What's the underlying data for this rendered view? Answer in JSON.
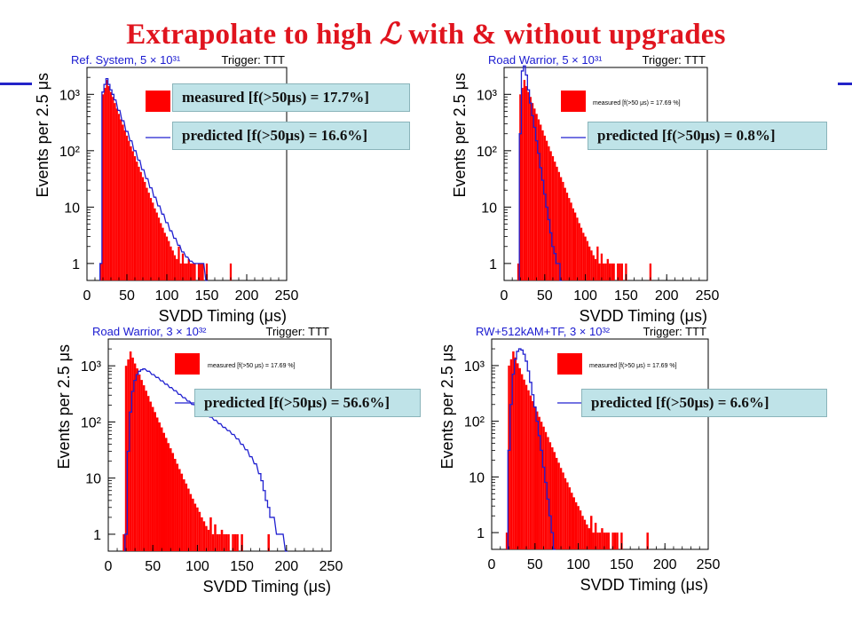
{
  "slide": {
    "title_prefix": "Extrapolate to high ",
    "title_symbol": "ℒ",
    "title_suffix": " with & without upgrades",
    "accent_color": "#2323c8",
    "title_color": "#e0141e"
  },
  "chart_data": [
    {
      "type": "bar",
      "title": "Ref. System, 5 × 10³¹",
      "trigger": "Trigger: TTT",
      "xlabel": "SVDD Timing (μs)",
      "ylabel": "Events per 2.5 μs",
      "xlim": [
        0,
        250
      ],
      "xticks": [
        "0",
        "50",
        "100",
        "150",
        "200",
        "250"
      ],
      "yscale": "log",
      "ylim": [
        0.5,
        3000
      ],
      "yticks": [
        "1",
        "10",
        "10²",
        "10³"
      ],
      "legend_small": "",
      "legend_measured": "measured [f(>50μs) = 17.7%]",
      "legend_predicted": "predicted [f(>50μs) = 16.6%]",
      "series": [
        {
          "name": "measured",
          "color": "#ff0000",
          "x": [
            17.5,
            20,
            22.5,
            25,
            27.5,
            30,
            32.5,
            35,
            37.5,
            40,
            42.5,
            45,
            47.5,
            50,
            52.5,
            55,
            57.5,
            60,
            62.5,
            65,
            67.5,
            70,
            72.5,
            75,
            77.5,
            80,
            82.5,
            85,
            87.5,
            90,
            92.5,
            95,
            97.5,
            100,
            102.5,
            105,
            107.5,
            110,
            112.5,
            115,
            117.5,
            120,
            122.5,
            125,
            127.5,
            130,
            132.5,
            135,
            137.5,
            140,
            142.5,
            145,
            147.5,
            150,
            180
          ],
          "values": [
            1,
            1000,
            1300,
            1800,
            1400,
            1100,
            900,
            700,
            560,
            450,
            360,
            290,
            230,
            185,
            150,
            120,
            98,
            80,
            64,
            52,
            42,
            34,
            28,
            22,
            18,
            14.5,
            12,
            9.5,
            8,
            6.5,
            5.2,
            4.3,
            3.5,
            3,
            2.5,
            2,
            1.7,
            1.4,
            1.2,
            2,
            1,
            1.5,
            1,
            1,
            1.2,
            1,
            1,
            1,
            0,
            1,
            1,
            1,
            0,
            1,
            1
          ]
        },
        {
          "name": "predicted",
          "color": "#2020d0",
          "x": [
            17.5,
            20,
            22.5,
            25,
            27.5,
            30,
            32.5,
            35,
            40,
            45,
            50,
            55,
            60,
            65,
            70,
            75,
            80,
            85,
            90,
            95,
            100,
            105,
            110,
            115,
            120,
            125,
            130,
            135,
            140,
            145,
            150
          ],
          "values": [
            1,
            1100,
            1500,
            1900,
            1500,
            1200,
            1000,
            800,
            520,
            340,
            220,
            150,
            100,
            68,
            46,
            32,
            22,
            15,
            10.5,
            7.5,
            5.3,
            3.8,
            2.8,
            2.1,
            1.6,
            1.3,
            1.1,
            1,
            1,
            1,
            0.5
          ]
        }
      ]
    },
    {
      "type": "bar",
      "title": "Road Warrior, 5 × 10³¹",
      "trigger": "Trigger: TTT",
      "xlabel": "SVDD Timing (μs)",
      "ylabel": "Events per 2.5 μs",
      "xlim": [
        0,
        250
      ],
      "xticks": [
        "0",
        "50",
        "100",
        "150",
        "200",
        "250"
      ],
      "yscale": "log",
      "ylim": [
        0.5,
        3000
      ],
      "yticks": [
        "1",
        "10",
        "10²",
        "10³"
      ],
      "legend_small": "measured [f(>50 μs) = 17.69 %]",
      "legend_measured": "",
      "legend_predicted": "predicted [f(>50μs) = 0.8%]",
      "series": [
        {
          "name": "measured",
          "color": "#ff0000",
          "x": [
            17.5,
            20,
            22.5,
            25,
            27.5,
            30,
            32.5,
            35,
            37.5,
            40,
            42.5,
            45,
            47.5,
            50,
            52.5,
            55,
            57.5,
            60,
            62.5,
            65,
            67.5,
            70,
            72.5,
            75,
            77.5,
            80,
            82.5,
            85,
            87.5,
            90,
            92.5,
            95,
            97.5,
            100,
            102.5,
            105,
            107.5,
            110,
            112.5,
            115,
            117.5,
            120,
            122.5,
            125,
            127.5,
            130,
            132.5,
            135,
            137.5,
            140,
            142.5,
            145,
            147.5,
            150,
            180
          ],
          "values": [
            1,
            1000,
            1300,
            1800,
            1400,
            1100,
            900,
            700,
            560,
            450,
            360,
            290,
            230,
            185,
            150,
            120,
            98,
            80,
            64,
            52,
            42,
            34,
            28,
            22,
            18,
            14.5,
            12,
            9.5,
            8,
            6.5,
            5.2,
            4.3,
            3.5,
            3,
            2.5,
            2,
            1.7,
            1.4,
            1.2,
            2,
            1,
            1.5,
            1,
            1,
            1.2,
            1,
            1,
            1,
            0,
            1,
            1,
            1,
            0,
            1,
            1
          ]
        },
        {
          "name": "predicted",
          "color": "#2020d0",
          "x": [
            20,
            22.5,
            25,
            27.5,
            30,
            32.5,
            35,
            37.5,
            40,
            42.5,
            45,
            47.5,
            50,
            52.5,
            55,
            57.5,
            60,
            62.5,
            65,
            67.5,
            70
          ],
          "values": [
            200,
            2600,
            3200,
            2200,
            1200,
            700,
            420,
            260,
            150,
            90,
            50,
            30,
            17,
            10,
            6,
            3.5,
            2,
            1.5,
            1,
            1,
            0.5
          ]
        }
      ]
    },
    {
      "type": "bar",
      "title": "Road Warrior, 3 × 10³²",
      "trigger": "Trigger: TTT",
      "xlabel": "SVDD Timing (μs)",
      "ylabel": "Events per 2.5 μs",
      "xlim": [
        0,
        250
      ],
      "xticks": [
        "0",
        "50",
        "100",
        "150",
        "200",
        "250"
      ],
      "yscale": "log",
      "ylim": [
        0.5,
        3000
      ],
      "yticks": [
        "1",
        "10",
        "10²",
        "10³"
      ],
      "legend_small": "measured [f(>50 μs) = 17.69 %]",
      "legend_measured": "",
      "legend_predicted": "predicted [f(>50μs) = 56.6%]",
      "series": [
        {
          "name": "measured",
          "color": "#ff0000",
          "x": [
            17.5,
            20,
            22.5,
            25,
            27.5,
            30,
            32.5,
            35,
            37.5,
            40,
            42.5,
            45,
            47.5,
            50,
            52.5,
            55,
            57.5,
            60,
            62.5,
            65,
            67.5,
            70,
            72.5,
            75,
            77.5,
            80,
            82.5,
            85,
            87.5,
            90,
            92.5,
            95,
            97.5,
            100,
            102.5,
            105,
            107.5,
            110,
            112.5,
            115,
            117.5,
            120,
            122.5,
            125,
            127.5,
            130,
            132.5,
            135,
            137.5,
            140,
            142.5,
            145,
            147.5,
            150,
            180
          ],
          "values": [
            1,
            1000,
            1300,
            1800,
            1400,
            1100,
            900,
            700,
            560,
            450,
            360,
            290,
            230,
            185,
            150,
            120,
            98,
            80,
            64,
            52,
            42,
            34,
            28,
            22,
            18,
            14.5,
            12,
            9.5,
            8,
            6.5,
            5.2,
            4.3,
            3.5,
            3,
            2.5,
            2,
            1.7,
            1.4,
            1.2,
            2,
            1,
            1.5,
            1,
            1,
            1.2,
            1,
            1,
            1,
            0,
            1,
            1,
            1,
            0,
            1,
            1
          ]
        },
        {
          "name": "predicted",
          "color": "#2020d0",
          "x": [
            20,
            22.5,
            25,
            27.5,
            30,
            32.5,
            35,
            37.5,
            40,
            45,
            50,
            55,
            60,
            65,
            70,
            75,
            80,
            85,
            90,
            95,
            100,
            105,
            110,
            115,
            120,
            125,
            130,
            135,
            140,
            145,
            150,
            155,
            160,
            165,
            170,
            172.5,
            175,
            177.5,
            180,
            182.5,
            185,
            190,
            195,
            200
          ],
          "values": [
            1,
            30,
            150,
            350,
            550,
            700,
            800,
            850,
            880,
            800,
            700,
            620,
            540,
            470,
            410,
            360,
            310,
            270,
            235,
            205,
            180,
            160,
            140,
            122,
            107,
            93,
            80,
            70,
            60,
            50,
            40,
            32,
            24,
            18,
            12,
            9,
            6,
            4,
            3,
            2,
            2,
            1,
            1,
            0.5
          ]
        }
      ]
    },
    {
      "type": "bar",
      "title": "RW+512kAM+TF, 3 × 10³²",
      "trigger": "Trigger: TTT",
      "xlabel": "SVDD Timing (μs)",
      "ylabel": "Events per 2.5 μs",
      "xlim": [
        0,
        250
      ],
      "xticks": [
        "0",
        "50",
        "100",
        "150",
        "200",
        "250"
      ],
      "yscale": "log",
      "ylim": [
        0.5,
        3000
      ],
      "yticks": [
        "1",
        "10",
        "10²",
        "10³"
      ],
      "legend_small": "measured [f(>50 μs) = 17.69 %]",
      "legend_measured": "",
      "legend_predicted": "predicted [f(>50μs) = 6.6%]",
      "series": [
        {
          "name": "measured",
          "color": "#ff0000",
          "x": [
            17.5,
            20,
            22.5,
            25,
            27.5,
            30,
            32.5,
            35,
            37.5,
            40,
            42.5,
            45,
            47.5,
            50,
            52.5,
            55,
            57.5,
            60,
            62.5,
            65,
            67.5,
            70,
            72.5,
            75,
            77.5,
            80,
            82.5,
            85,
            87.5,
            90,
            92.5,
            95,
            97.5,
            100,
            102.5,
            105,
            107.5,
            110,
            112.5,
            115,
            117.5,
            120,
            122.5,
            125,
            127.5,
            130,
            132.5,
            135,
            137.5,
            140,
            142.5,
            145,
            147.5,
            150,
            180
          ],
          "values": [
            1,
            1000,
            1300,
            1800,
            1400,
            1100,
            900,
            700,
            560,
            450,
            360,
            290,
            230,
            185,
            150,
            120,
            98,
            80,
            64,
            52,
            42,
            34,
            28,
            22,
            18,
            14.5,
            12,
            9.5,
            8,
            6.5,
            5.2,
            4.3,
            3.5,
            3,
            2.5,
            2,
            1.7,
            1.4,
            1.2,
            2,
            1,
            1.5,
            1,
            1,
            1.2,
            1,
            1,
            1,
            0,
            1,
            1,
            1,
            0,
            1,
            1
          ]
        },
        {
          "name": "predicted",
          "color": "#2020d0",
          "x": [
            20,
            22.5,
            25,
            27.5,
            30,
            32.5,
            35,
            37.5,
            40,
            42.5,
            45,
            47.5,
            50,
            52.5,
            55,
            57.5,
            60,
            62.5,
            65,
            67.5,
            70,
            72.5
          ],
          "values": [
            30,
            200,
            700,
            1300,
            1800,
            2000,
            1900,
            1600,
            1200,
            800,
            500,
            300,
            180,
            100,
            55,
            30,
            15,
            8,
            4,
            2,
            1,
            0.5
          ]
        }
      ]
    }
  ]
}
